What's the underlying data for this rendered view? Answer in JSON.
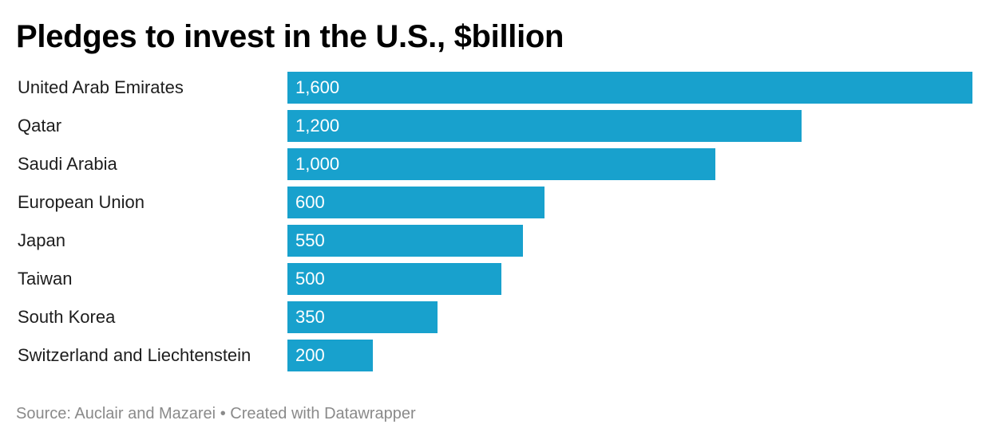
{
  "chart_data": {
    "type": "bar",
    "orientation": "horizontal",
    "title": "Pledges to invest in the U.S., $billion",
    "categories": [
      "United Arab Emirates",
      "Qatar",
      "Saudi Arabia",
      "European Union",
      "Japan",
      "Taiwan",
      "South Korea",
      "Switzerland and Liechtenstein"
    ],
    "values": [
      1600,
      1200,
      1000,
      600,
      550,
      500,
      350,
      200
    ],
    "value_labels": [
      "1,600",
      "1,200",
      "1,000",
      "600",
      "550",
      "500",
      "350",
      "200"
    ],
    "xlim": [
      0,
      1600
    ],
    "xlabel": "",
    "ylabel": "",
    "grid": false
  },
  "footer": {
    "source": "Source: Auclair and Mazarei",
    "separator": "•",
    "credit": "Created with Datawrapper"
  },
  "colors": {
    "bar": "#18a1cd",
    "value_text": "#ffffff"
  }
}
